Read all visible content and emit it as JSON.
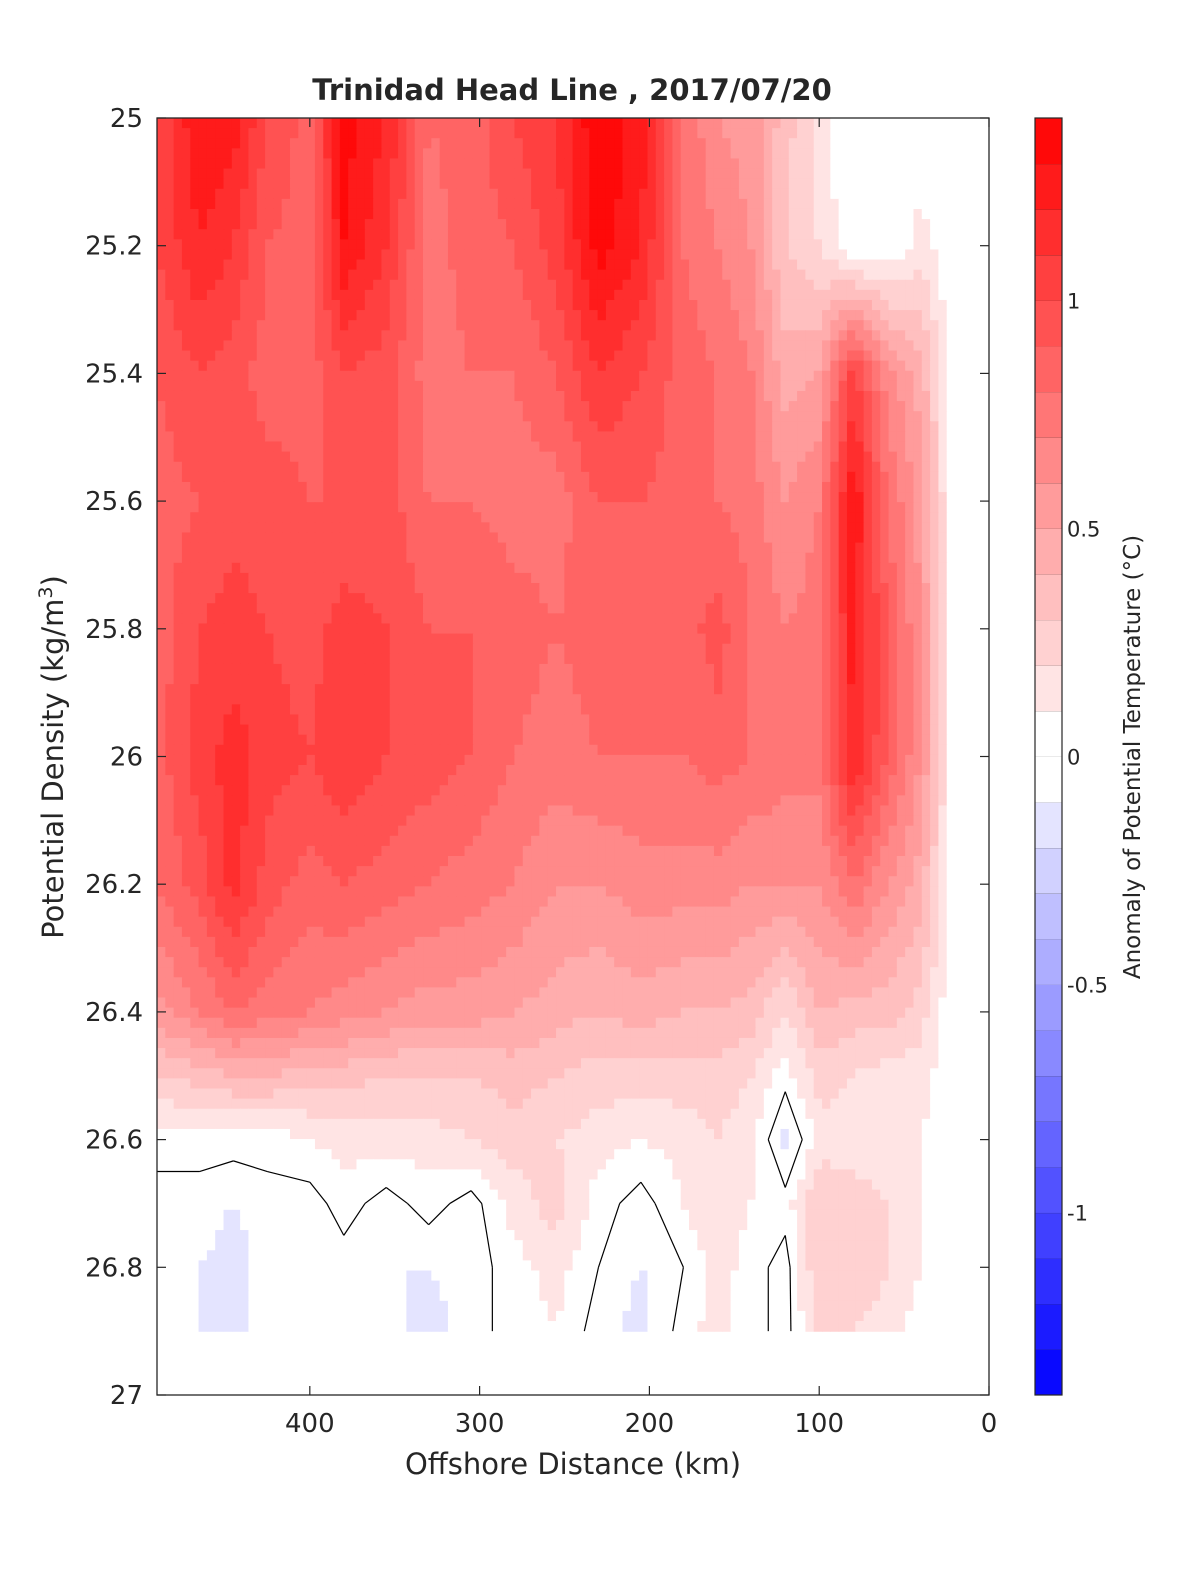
{
  "chart_data": {
    "type": "contour",
    "title": "Trinidad Head Line , 2017/07/20",
    "xlabel": "Offshore Distance (km)",
    "ylabel_main": "Potential Density (kg/m",
    "ylabel_sup": "3",
    "ylabel_close": ")",
    "colorbar_label": "Anomaly of Potential Temperature (°C)",
    "x_axis_reversed": true,
    "xlim": [
      0,
      490
    ],
    "ylim": [
      25,
      27
    ],
    "y_axis_reversed": true,
    "xticks": [
      {
        "value": 400,
        "label": "400"
      },
      {
        "value": 300,
        "label": "300"
      },
      {
        "value": 200,
        "label": "200"
      },
      {
        "value": 100,
        "label": "100"
      },
      {
        "value": 0,
        "label": "0"
      }
    ],
    "yticks": [
      {
        "value": 25,
        "label": "25"
      },
      {
        "value": 25.2,
        "label": "25.2"
      },
      {
        "value": 25.4,
        "label": "25.4"
      },
      {
        "value": 25.6,
        "label": "25.6"
      },
      {
        "value": 25.8,
        "label": "25.8"
      },
      {
        "value": 26,
        "label": "26"
      },
      {
        "value": 26.2,
        "label": "26.2"
      },
      {
        "value": 26.4,
        "label": "26.4"
      },
      {
        "value": 26.6,
        "label": "26.6"
      },
      {
        "value": 26.8,
        "label": "26.8"
      },
      {
        "value": 27,
        "label": "27"
      }
    ],
    "colorbar": {
      "range": [
        -1.4,
        1.4
      ],
      "levels": 28,
      "ticks": [
        {
          "value": 1,
          "label": "1"
        },
        {
          "value": 0.5,
          "label": "0.5"
        },
        {
          "value": 0,
          "label": "0"
        },
        {
          "value": -0.5,
          "label": "-0.5"
        },
        {
          "value": -1,
          "label": "-1"
        }
      ]
    },
    "colors": {
      "warm": "#ff0000",
      "cold": "#0000ff",
      "neutral": "#ffffff",
      "contour": "#000000"
    },
    "data_extent": {
      "x": [
        20,
        490
      ],
      "y": [
        25,
        26.9
      ]
    },
    "stations_km": [
      490,
      465,
      445,
      425,
      400,
      380,
      355,
      330,
      305,
      280,
      255,
      230,
      205,
      180,
      160,
      140,
      120,
      100,
      80,
      60,
      40,
      20
    ],
    "density_levels": [
      25.0,
      25.2,
      25.4,
      25.6,
      25.8,
      26.0,
      26.2,
      26.4,
      26.5,
      26.6,
      26.7,
      26.8,
      26.9
    ],
    "anomaly_grid": [
      [
        1.0,
        1.3,
        1.25,
        1.0,
        0.85,
        1.35,
        1.2,
        0.8,
        0.85,
        1.0,
        1.1,
        1.4,
        1.25,
        0.8,
        0.6,
        0.55,
        0.35,
        0.15,
        0.0,
        0.0,
        0.0,
        0.0
      ],
      [
        1.0,
        1.2,
        1.1,
        0.9,
        0.85,
        1.3,
        1.1,
        0.75,
        0.85,
        0.9,
        1.05,
        1.35,
        1.2,
        0.8,
        0.7,
        0.6,
        0.3,
        0.2,
        0.0,
        0.0,
        0.15,
        0.0
      ],
      [
        0.9,
        1.0,
        0.95,
        0.85,
        0.85,
        1.0,
        0.95,
        0.75,
        0.8,
        0.8,
        0.9,
        1.1,
        1.0,
        0.85,
        0.8,
        0.7,
        0.45,
        0.5,
        1.05,
        0.65,
        0.45,
        0.0
      ],
      [
        0.85,
        0.9,
        0.95,
        0.95,
        0.9,
        0.9,
        0.95,
        0.8,
        0.8,
        0.75,
        0.75,
        0.9,
        0.9,
        0.85,
        0.8,
        0.75,
        0.6,
        0.7,
        1.3,
        0.8,
        0.55,
        0.0
      ],
      [
        0.85,
        1.0,
        1.05,
        1.0,
        0.95,
        1.05,
        1.0,
        0.9,
        0.9,
        0.85,
        0.8,
        0.85,
        0.85,
        0.85,
        0.95,
        0.8,
        0.7,
        0.75,
        1.25,
        0.9,
        0.6,
        0.0
      ],
      [
        0.85,
        1.05,
        1.15,
        1.05,
        1.0,
        1.1,
        1.0,
        0.95,
        0.9,
        0.8,
        0.75,
        0.8,
        0.8,
        0.8,
        0.85,
        0.8,
        0.75,
        0.75,
        1.2,
        0.9,
        0.6,
        0.0
      ],
      [
        0.8,
        0.95,
        1.15,
        0.95,
        0.85,
        0.9,
        0.85,
        0.8,
        0.75,
        0.7,
        0.6,
        0.6,
        0.65,
        0.65,
        0.65,
        0.6,
        0.6,
        0.6,
        0.8,
        0.6,
        0.45,
        0.0
      ],
      [
        0.55,
        0.7,
        0.8,
        0.75,
        0.7,
        0.65,
        0.6,
        0.55,
        0.55,
        0.5,
        0.45,
        0.4,
        0.45,
        0.4,
        0.4,
        0.35,
        0.2,
        0.4,
        0.35,
        0.35,
        0.25,
        0.0
      ],
      [
        0.3,
        0.35,
        0.4,
        0.4,
        0.35,
        0.35,
        0.3,
        0.3,
        0.3,
        0.35,
        0.3,
        0.25,
        0.25,
        0.25,
        0.25,
        0.2,
        0.05,
        0.25,
        0.2,
        0.15,
        0.15,
        0.0
      ],
      [
        0.05,
        0.05,
        0.05,
        0.05,
        0.1,
        0.15,
        0.15,
        0.15,
        0.2,
        0.25,
        0.2,
        0.15,
        0.1,
        0.15,
        0.2,
        0.15,
        -0.15,
        0.15,
        0.15,
        0.15,
        0.1,
        0.0
      ],
      [
        -0.05,
        -0.05,
        -0.1,
        -0.05,
        -0.05,
        0.05,
        -0.05,
        0.05,
        -0.05,
        0.15,
        0.25,
        0.05,
        -0.05,
        0.1,
        0.2,
        0.1,
        0.05,
        0.3,
        0.25,
        0.2,
        0.1,
        0.0
      ],
      [
        -0.1,
        -0.1,
        -0.15,
        -0.05,
        -0.05,
        -0.05,
        -0.1,
        -0.1,
        -0.05,
        0.05,
        0.15,
        0.0,
        -0.1,
        0.0,
        0.15,
        0.05,
        -0.05,
        0.3,
        0.3,
        0.2,
        0.1,
        0.0
      ],
      [
        -0.1,
        -0.1,
        -0.15,
        -0.05,
        0.0,
        -0.05,
        -0.05,
        -0.15,
        -0.05,
        0.05,
        0.1,
        -0.05,
        -0.15,
        0.05,
        0.15,
        0.05,
        -0.05,
        0.25,
        0.2,
        0.15,
        0.05,
        0.0
      ]
    ],
    "grid": false,
    "legend": "colorbar-right"
  }
}
